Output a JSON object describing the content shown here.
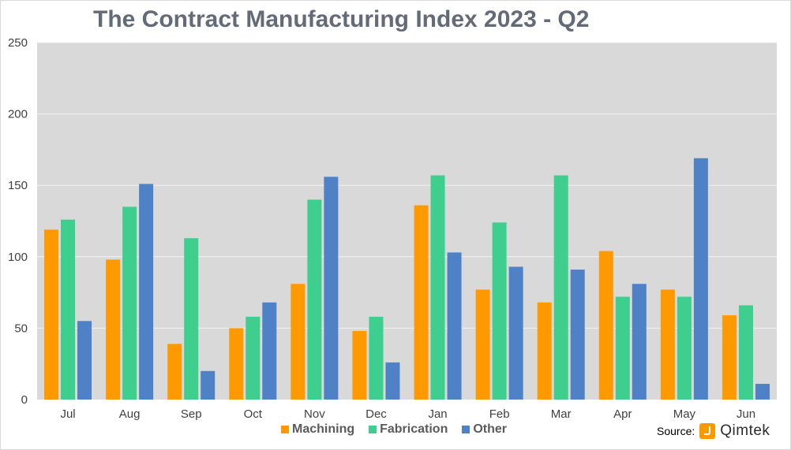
{
  "chart_data": {
    "type": "bar",
    "title": "The Contract Manufacturing Index 2023 - Q2",
    "categories": [
      "Jul",
      "Aug",
      "Sep",
      "Oct",
      "Nov",
      "Dec",
      "Jan",
      "Feb",
      "Mar",
      "Apr",
      "May",
      "Jun"
    ],
    "series": [
      {
        "name": "Machining",
        "color": "#ff9900",
        "values": [
          119,
          98,
          39,
          50,
          81,
          48,
          136,
          77,
          68,
          104,
          77,
          59
        ]
      },
      {
        "name": "Fabrication",
        "color": "#3ecf8e",
        "values": [
          126,
          135,
          113,
          58,
          140,
          58,
          157,
          124,
          157,
          72,
          72,
          66
        ]
      },
      {
        "name": "Other",
        "color": "#4f81c7",
        "values": [
          55,
          151,
          20,
          68,
          156,
          26,
          103,
          93,
          91,
          81,
          169,
          11
        ]
      }
    ],
    "ylim": [
      0,
      250
    ],
    "yticks": [
      0,
      50,
      100,
      150,
      200,
      250
    ],
    "grid": true,
    "legend_position": "bottom"
  },
  "source": {
    "label": "Source:",
    "brand": "Qimtek"
  },
  "colors": {
    "plot_background": "#d9d9d9",
    "gridline": "#f2f2f2"
  }
}
